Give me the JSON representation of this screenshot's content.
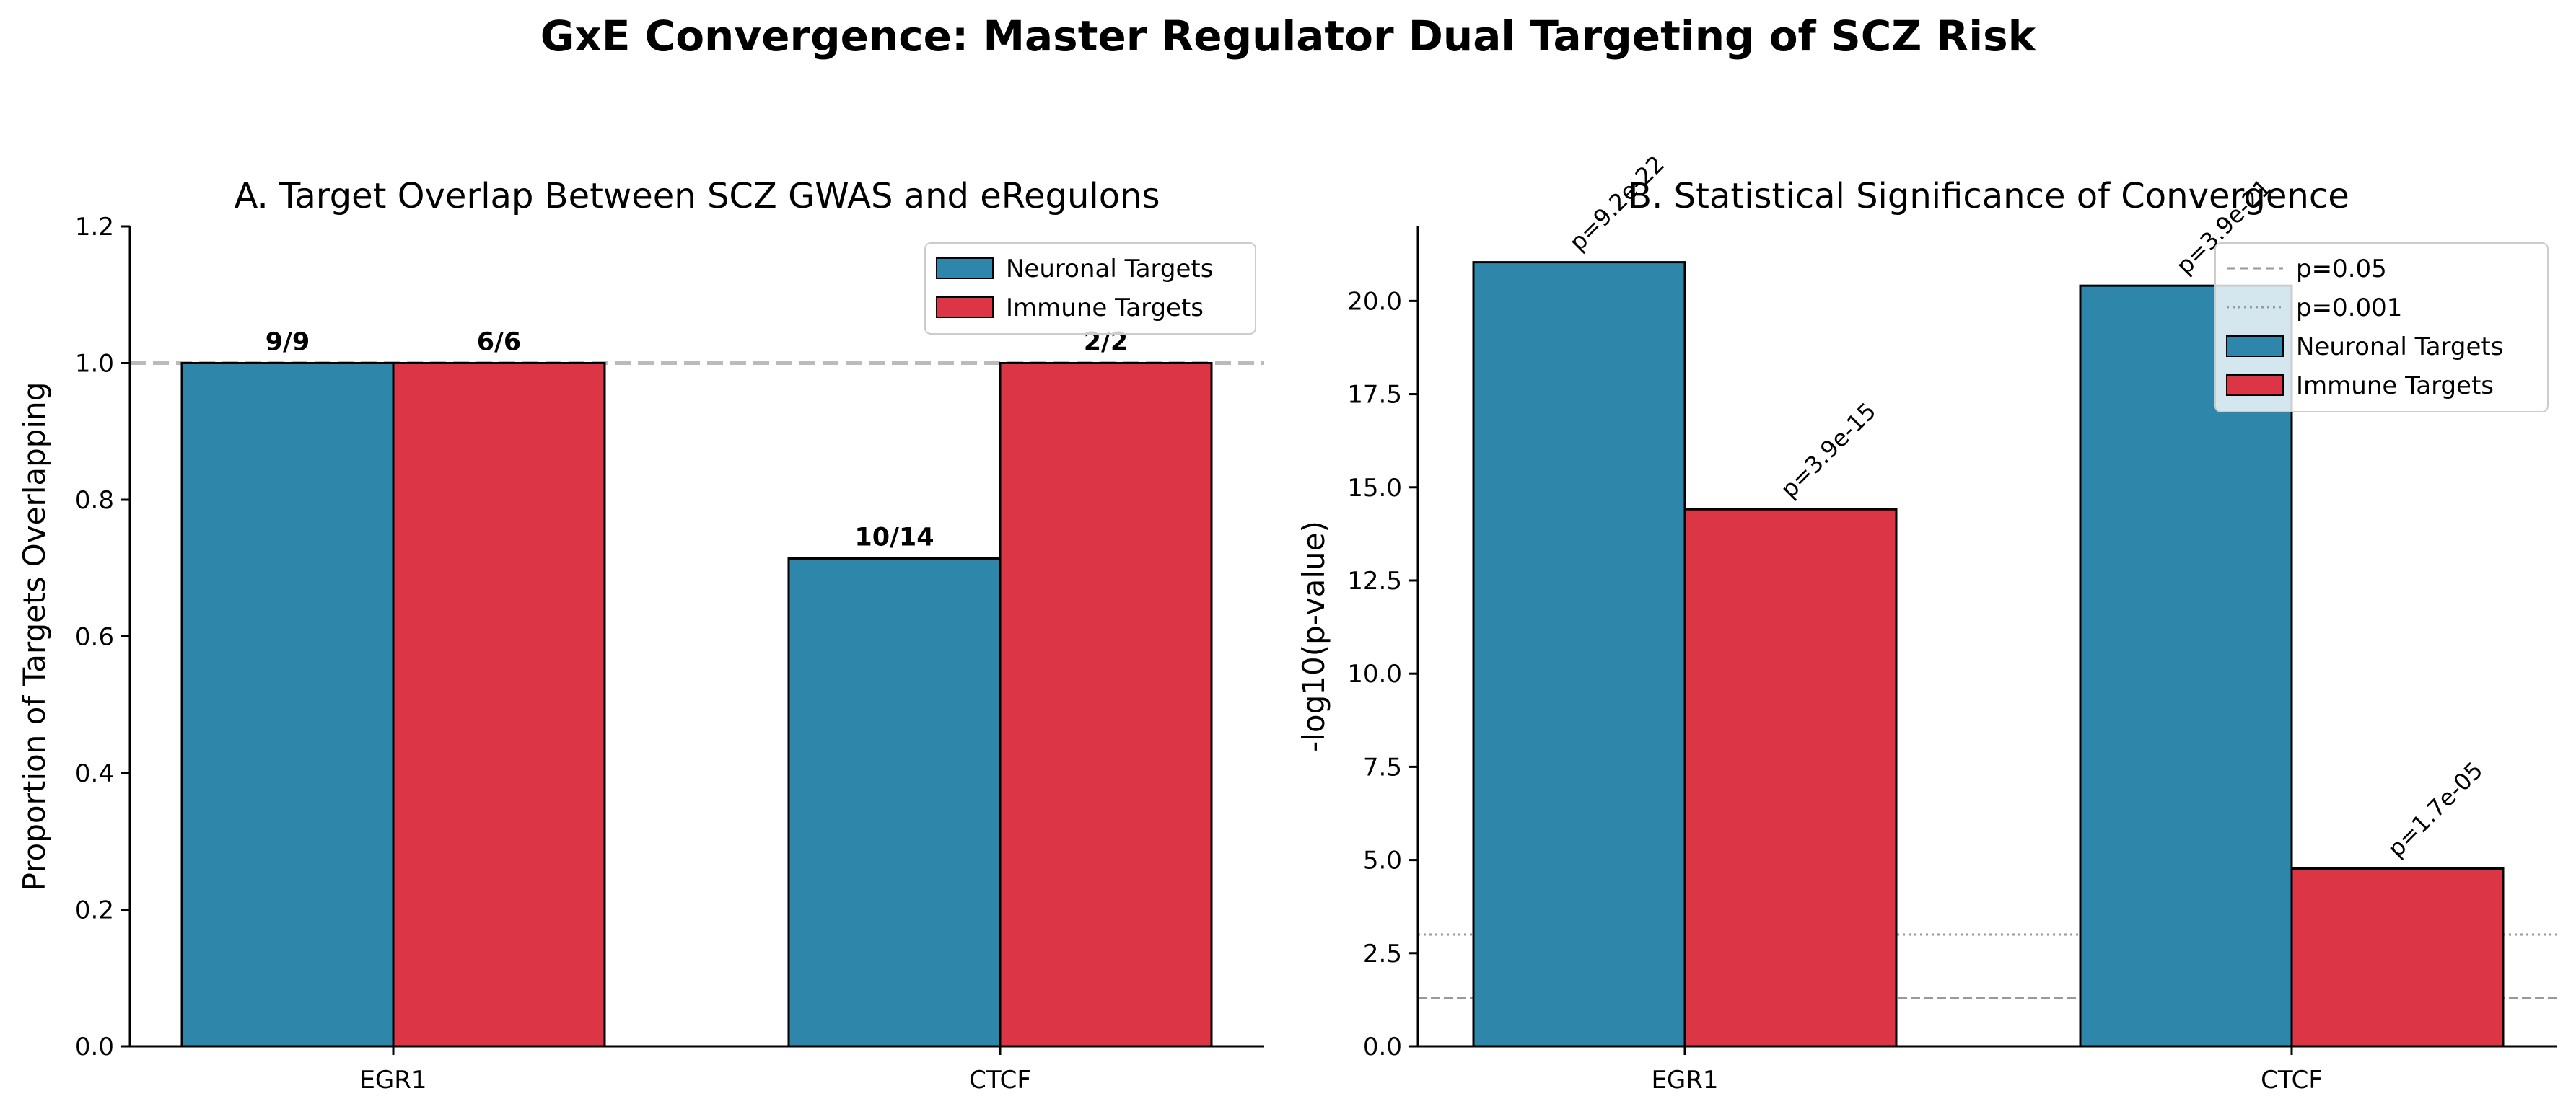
{
  "figure": {
    "title": "GxE Convergence: Master Regulator Dual Targeting of SCZ Risk"
  },
  "colors": {
    "neuronal": "#2E86AB",
    "immune": "#DC3545",
    "edge": "#000000",
    "reference": "#999999"
  },
  "chart_data": [
    {
      "type": "bar",
      "title": "A. Target Overlap Between SCZ GWAS and eRegulons",
      "xlabel": "",
      "ylabel": "Proportion of Targets Overlapping",
      "categories": [
        "EGR1",
        "CTCF"
      ],
      "series": [
        {
          "name": "Neuronal Targets",
          "values": [
            1.0,
            0.714
          ],
          "labels": [
            "9/9",
            "10/14"
          ]
        },
        {
          "name": "Immune Targets",
          "values": [
            1.0,
            1.0
          ],
          "labels": [
            "6/6",
            "2/2"
          ]
        }
      ],
      "ylim": [
        0,
        1.2
      ],
      "yticks": [
        "0.0",
        "0.2",
        "0.4",
        "0.6",
        "0.8",
        "1.0",
        "1.2"
      ],
      "reference_lines": [
        {
          "y": 1.0,
          "style": "dashed"
        }
      ],
      "legend": "top-right",
      "grid": false
    },
    {
      "type": "bar",
      "title": "B. Statistical Significance of Convergence",
      "xlabel": "",
      "ylabel": "-log10(p-value)",
      "categories": [
        "EGR1",
        "CTCF"
      ],
      "series": [
        {
          "name": "Neuronal Targets",
          "values": [
            21.04,
            20.41
          ],
          "labels": [
            "p=9.2e-22",
            "p=3.9e-21"
          ]
        },
        {
          "name": "Immune Targets",
          "values": [
            14.41,
            4.77
          ],
          "labels": [
            "p=3.9e-15",
            "p=1.7e-05"
          ]
        }
      ],
      "ylim": [
        0,
        22
      ],
      "yticks": [
        "0.0",
        "2.5",
        "5.0",
        "7.5",
        "10.0",
        "12.5",
        "15.0",
        "17.5",
        "20.0"
      ],
      "reference_lines": [
        {
          "y": 1.301,
          "label": "p=0.05",
          "style": "dashed"
        },
        {
          "y": 3.0,
          "label": "p=0.001",
          "style": "dotted"
        }
      ],
      "legend": "top-right",
      "grid": false
    }
  ]
}
